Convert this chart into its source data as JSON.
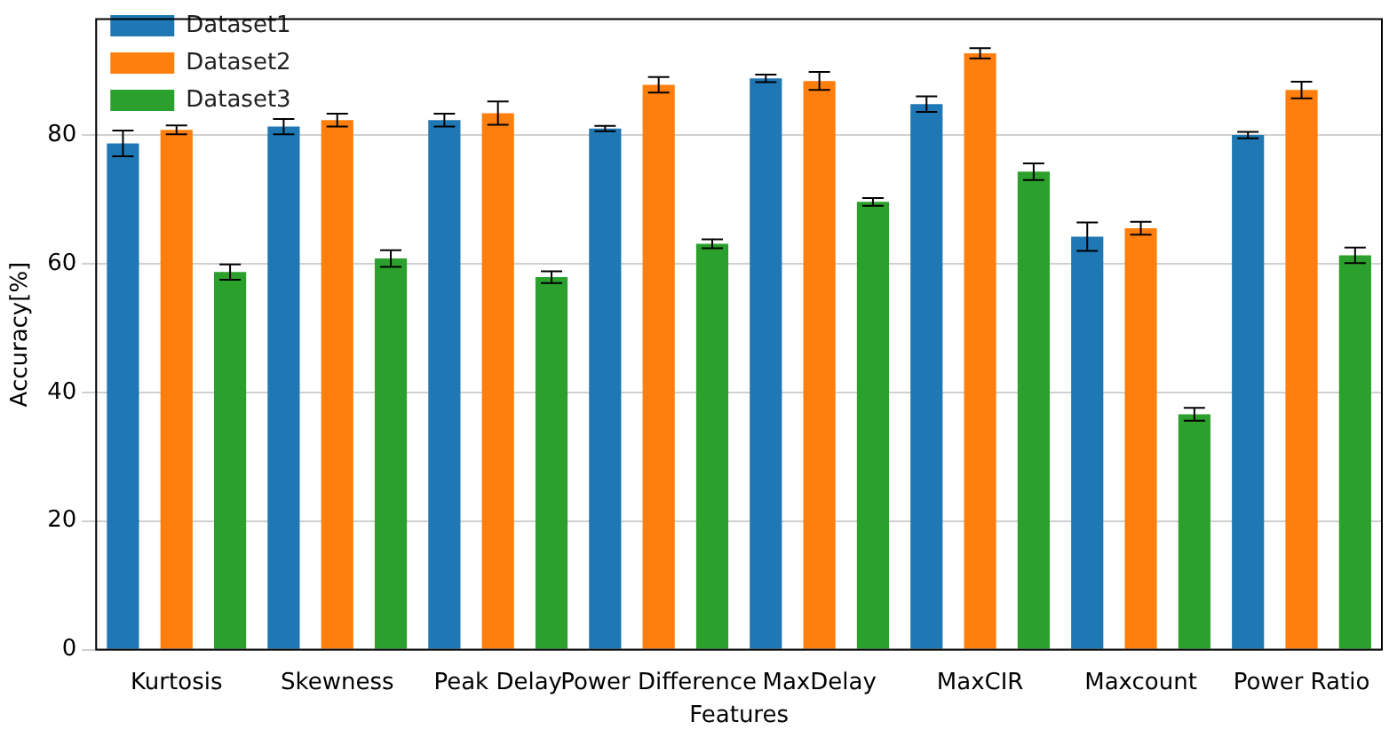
{
  "chart_data": {
    "type": "bar",
    "xlabel": "Features",
    "ylabel": "Accuracy[%]",
    "categories": [
      "Kurtosis",
      "Skewness",
      "Peak Delay",
      "Power Difference",
      "MaxDelay",
      "MaxCIR",
      "Maxcount",
      "Power Ratio"
    ],
    "series": [
      {
        "name": "Dataset1",
        "color": "#1f77b4",
        "values": [
          78.7,
          81.3,
          82.3,
          81.0,
          88.8,
          84.8,
          64.2,
          80.0
        ],
        "errors": [
          2.0,
          1.2,
          1.0,
          0.4,
          0.6,
          1.2,
          2.2,
          0.5
        ]
      },
      {
        "name": "Dataset2",
        "color": "#ff7f0e",
        "values": [
          80.8,
          82.3,
          83.4,
          87.8,
          88.4,
          92.7,
          65.5,
          87.0
        ],
        "errors": [
          0.7,
          1.0,
          1.8,
          1.2,
          1.4,
          0.8,
          1.0,
          1.3
        ]
      },
      {
        "name": "Dataset3",
        "color": "#2ca02c",
        "values": [
          58.7,
          60.8,
          57.9,
          63.1,
          69.6,
          74.3,
          36.6,
          61.3
        ],
        "errors": [
          1.2,
          1.3,
          0.9,
          0.7,
          0.6,
          1.3,
          1.0,
          1.2
        ]
      }
    ],
    "ylim": [
      0,
      98
    ],
    "yticks": [
      0,
      20,
      40,
      60,
      80
    ],
    "grid": "y",
    "legend": "top left"
  }
}
